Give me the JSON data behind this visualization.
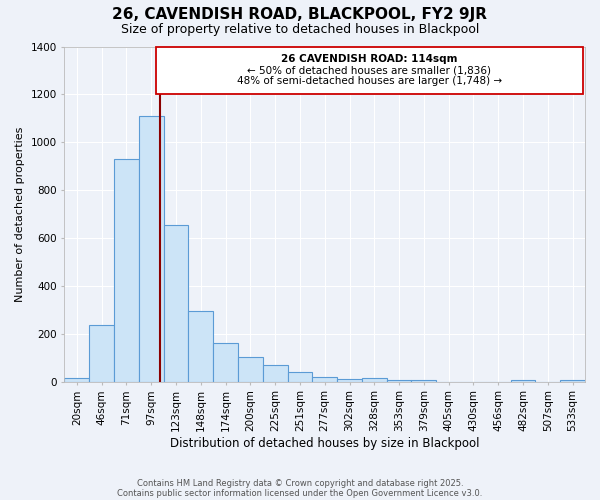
{
  "title": "26, CAVENDISH ROAD, BLACKPOOL, FY2 9JR",
  "subtitle": "Size of property relative to detached houses in Blackpool",
  "xlabel": "Distribution of detached houses by size in Blackpool",
  "ylabel": "Number of detached properties",
  "bar_color": "#cce4f7",
  "bar_edge_color": "#5b9bd5",
  "background_color": "#eef2f9",
  "grid_color": "#ffffff",
  "vline_color": "#8b0000",
  "bin_labels": [
    "20sqm",
    "46sqm",
    "71sqm",
    "97sqm",
    "123sqm",
    "148sqm",
    "174sqm",
    "200sqm",
    "225sqm",
    "251sqm",
    "277sqm",
    "302sqm",
    "328sqm",
    "353sqm",
    "379sqm",
    "405sqm",
    "430sqm",
    "456sqm",
    "482sqm",
    "507sqm",
    "533sqm"
  ],
  "counts": [
    15,
    235,
    930,
    1110,
    655,
    295,
    160,
    105,
    70,
    40,
    20,
    10,
    15,
    5,
    5,
    0,
    0,
    0,
    5,
    0,
    5
  ],
  "n_bins": 21,
  "ylim": [
    0,
    1400
  ],
  "yticks": [
    0,
    200,
    400,
    600,
    800,
    1000,
    1200,
    1400
  ],
  "vline_bin_index": 3.85,
  "annotation_title": "26 CAVENDISH ROAD: 114sqm",
  "annotation_line1": "← 50% of detached houses are smaller (1,836)",
  "annotation_line2": "48% of semi-detached houses are larger (1,748) →",
  "footer1": "Contains HM Land Registry data © Crown copyright and database right 2025.",
  "footer2": "Contains public sector information licensed under the Open Government Licence v3.0."
}
